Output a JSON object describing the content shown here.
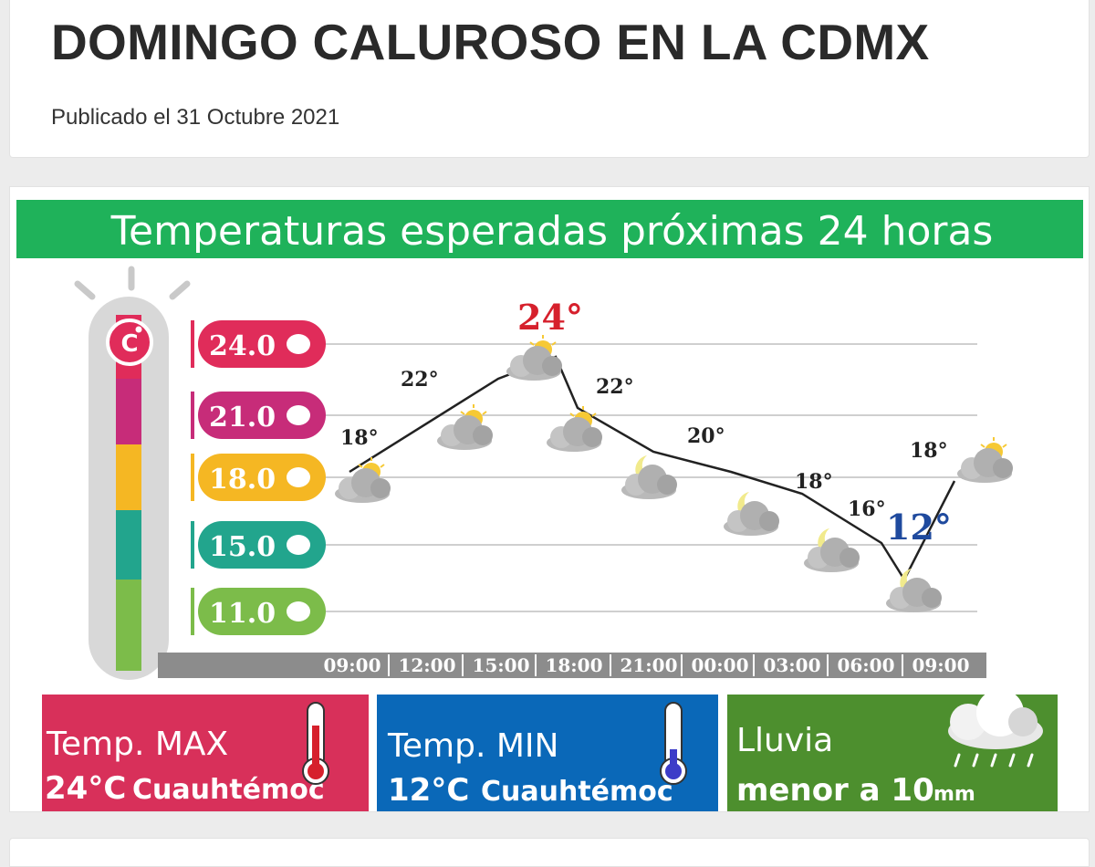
{
  "article": {
    "title": "DOMINGO CALUROSO EN LA CDMX",
    "published": "Publicado el 31 Octubre 2021"
  },
  "infographic": {
    "banner": "Temperaturas esperadas próximas 24 horas",
    "unit_symbol": "°C",
    "scale_labels": [
      "24.0",
      "21.0",
      "18.0",
      "15.0",
      "11.0"
    ],
    "scale_colors": [
      "#e02c5a",
      "#c72c79",
      "#f5b723",
      "#22a58d",
      "#7cbc4a"
    ],
    "time_labels": [
      "09:00",
      "12:00",
      "15:00",
      "18:00",
      "21:00",
      "00:00",
      "03:00",
      "06:00",
      "09:00"
    ],
    "point_labels": [
      {
        "label": "18°",
        "icon": "sun-cloud-icon"
      },
      {
        "label": "22°",
        "icon": "sun-cloud-icon"
      },
      {
        "label": "24°",
        "icon": "sun-cloud-icon"
      },
      {
        "label": "22°",
        "icon": "sun-cloud-icon"
      },
      {
        "label": "20°",
        "icon": "moon-cloud-icon"
      },
      {
        "label": "18°",
        "icon": "moon-cloud-icon"
      },
      {
        "label": "16°",
        "icon": "moon-cloud-icon"
      },
      {
        "label": "12°",
        "icon": "moon-cloud-icon"
      },
      {
        "label": "18°",
        "icon": "sun-cloud-icon"
      }
    ],
    "max_card": {
      "label": "Temp. MAX",
      "value": "24°C",
      "place": "Cuauhtémoc",
      "color": "#d8305a"
    },
    "min_card": {
      "label": "Temp. MIN",
      "value": "12°C",
      "place": "Cuauhtémoc",
      "color": "#0a68b8"
    },
    "rain_card": {
      "label": "Lluvia",
      "value": "menor a 10",
      "unit": "mm",
      "color": "#4d8f2e"
    },
    "banner_color": "#1fb25a"
  }
}
